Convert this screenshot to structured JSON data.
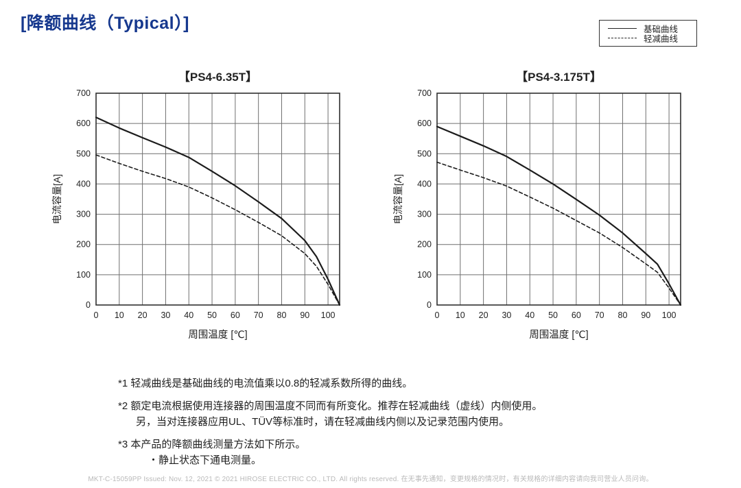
{
  "page": {
    "title": "[降额曲线（Typical）]"
  },
  "legend": {
    "items": [
      {
        "style": "solid",
        "label": "基础曲线"
      },
      {
        "style": "dashed",
        "label": "轻减曲线"
      }
    ]
  },
  "chart_data": [
    {
      "type": "line",
      "title": "【PS4-6.35T】",
      "xlabel": "周围温度 [℃]",
      "ylabel": "电流容量[A]",
      "xlim": [
        0,
        105
      ],
      "ylim": [
        0,
        700
      ],
      "x_ticks": [
        0,
        10,
        20,
        30,
        40,
        50,
        60,
        70,
        80,
        90,
        100
      ],
      "y_ticks": [
        0,
        100,
        200,
        300,
        400,
        500,
        600,
        700
      ],
      "grid": true,
      "legend_position": "top-right-page",
      "x": [
        0,
        10,
        20,
        30,
        40,
        50,
        60,
        70,
        80,
        90,
        95,
        100,
        105
      ],
      "series": [
        {
          "name": "基础曲线",
          "style": "solid",
          "values": [
            620,
            585,
            553,
            522,
            488,
            442,
            394,
            341,
            286,
            213,
            160,
            85,
            0
          ]
        },
        {
          "name": "轻减曲线",
          "style": "dashed",
          "values": [
            496,
            468,
            442,
            418,
            390,
            354,
            315,
            273,
            229,
            170,
            128,
            68,
            0
          ]
        }
      ]
    },
    {
      "type": "line",
      "title": "【PS4-3.175T】",
      "xlabel": "周围温度 [℃]",
      "ylabel": "电流容量[A]",
      "xlim": [
        0,
        105
      ],
      "ylim": [
        0,
        700
      ],
      "x_ticks": [
        0,
        10,
        20,
        30,
        40,
        50,
        60,
        70,
        80,
        90,
        100
      ],
      "y_ticks": [
        0,
        100,
        200,
        300,
        400,
        500,
        600,
        700
      ],
      "grid": true,
      "legend_position": "top-right-page",
      "x": [
        0,
        10,
        20,
        30,
        40,
        50,
        60,
        70,
        80,
        90,
        95,
        100,
        105
      ],
      "series": [
        {
          "name": "基础曲线",
          "style": "solid",
          "values": [
            590,
            558,
            526,
            491,
            446,
            400,
            349,
            297,
            238,
            170,
            135,
            70,
            0
          ]
        },
        {
          "name": "轻减曲线",
          "style": "dashed",
          "values": [
            472,
            446,
            421,
            393,
            357,
            320,
            279,
            238,
            190,
            136,
            108,
            56,
            0
          ]
        }
      ]
    }
  ],
  "notes": [
    "*1 轻减曲线是基础曲线的电流值乘以0.8的轻减系数所得的曲线。",
    "*2 额定电流根据使用连接器的周围温度不同而有所变化。推荐在轻减曲线（虚线）内侧使用。",
    "另，当对连接器应用UL、TÜV等标准时，请在轻减曲线内侧以及记录范围内使用。",
    "*3 本产品的降额曲线测量方法如下所示。",
    "・静止状态下通电测量。"
  ],
  "footer": {
    "text": "MKT-C-15059PP  Issued: Nov. 12, 2021  © 2021 HIROSE ELECTRIC CO., LTD.  All rights reserved.  在无事先通知，变更规格的情况时，有关规格的详细内容请向我司营业人员问询。"
  },
  "colors": {
    "accent": "#16388e",
    "grid": "#6f6f6f",
    "axis": "#2e2e2e",
    "curve": "#1c1c1c",
    "text": "#222222",
    "footer_text": "#b9b9b9"
  }
}
